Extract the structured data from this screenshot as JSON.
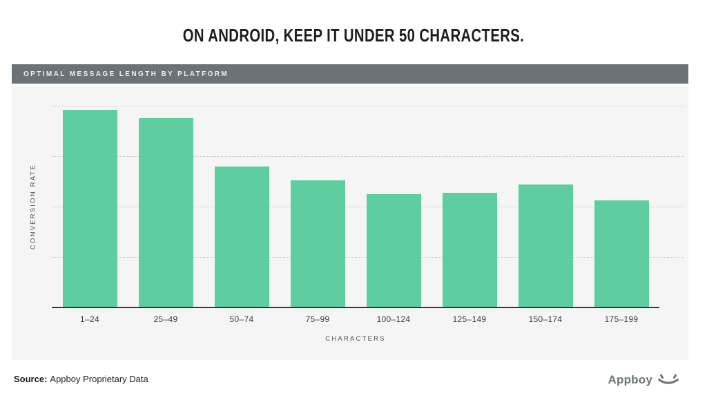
{
  "slide": {
    "title": "ON ANDROID, KEEP IT UNDER 50 CHARACTERS."
  },
  "panel": {
    "header_label": "OPTIMAL MESSAGE LENGTH BY PLATFORM"
  },
  "chart_data": {
    "type": "bar",
    "title": "OPTIMAL MESSAGE LENGTH BY PLATFORM",
    "categories": [
      "1–24",
      "25–49",
      "50–74",
      "75–99",
      "100–124",
      "125–149",
      "150–174",
      "175–199"
    ],
    "values": [
      98,
      94,
      70,
      63,
      56,
      57,
      61,
      53
    ],
    "xlabel": "CHARACTERS",
    "ylabel": "CONVERSION RATE",
    "ylim": [
      0,
      100
    ],
    "yticks": [
      25,
      50,
      75,
      100
    ],
    "ytick_labels_shown": false,
    "grid": "horizontal-dotted",
    "legend": "none",
    "bar_color": "#5ecda0"
  },
  "footer": {
    "source_label": "Source:",
    "source_text": "Appboy Proprietary Data",
    "brand_name": "Appboy",
    "brand_icon": "smile-icon"
  },
  "colors": {
    "bar": "#5ecda0",
    "header_bg": "#6b7377",
    "panel_bg": "#f5f5f6",
    "gridline": "#c7c7c7",
    "axis": "#34383a",
    "brand_gray": "#6d7478"
  }
}
